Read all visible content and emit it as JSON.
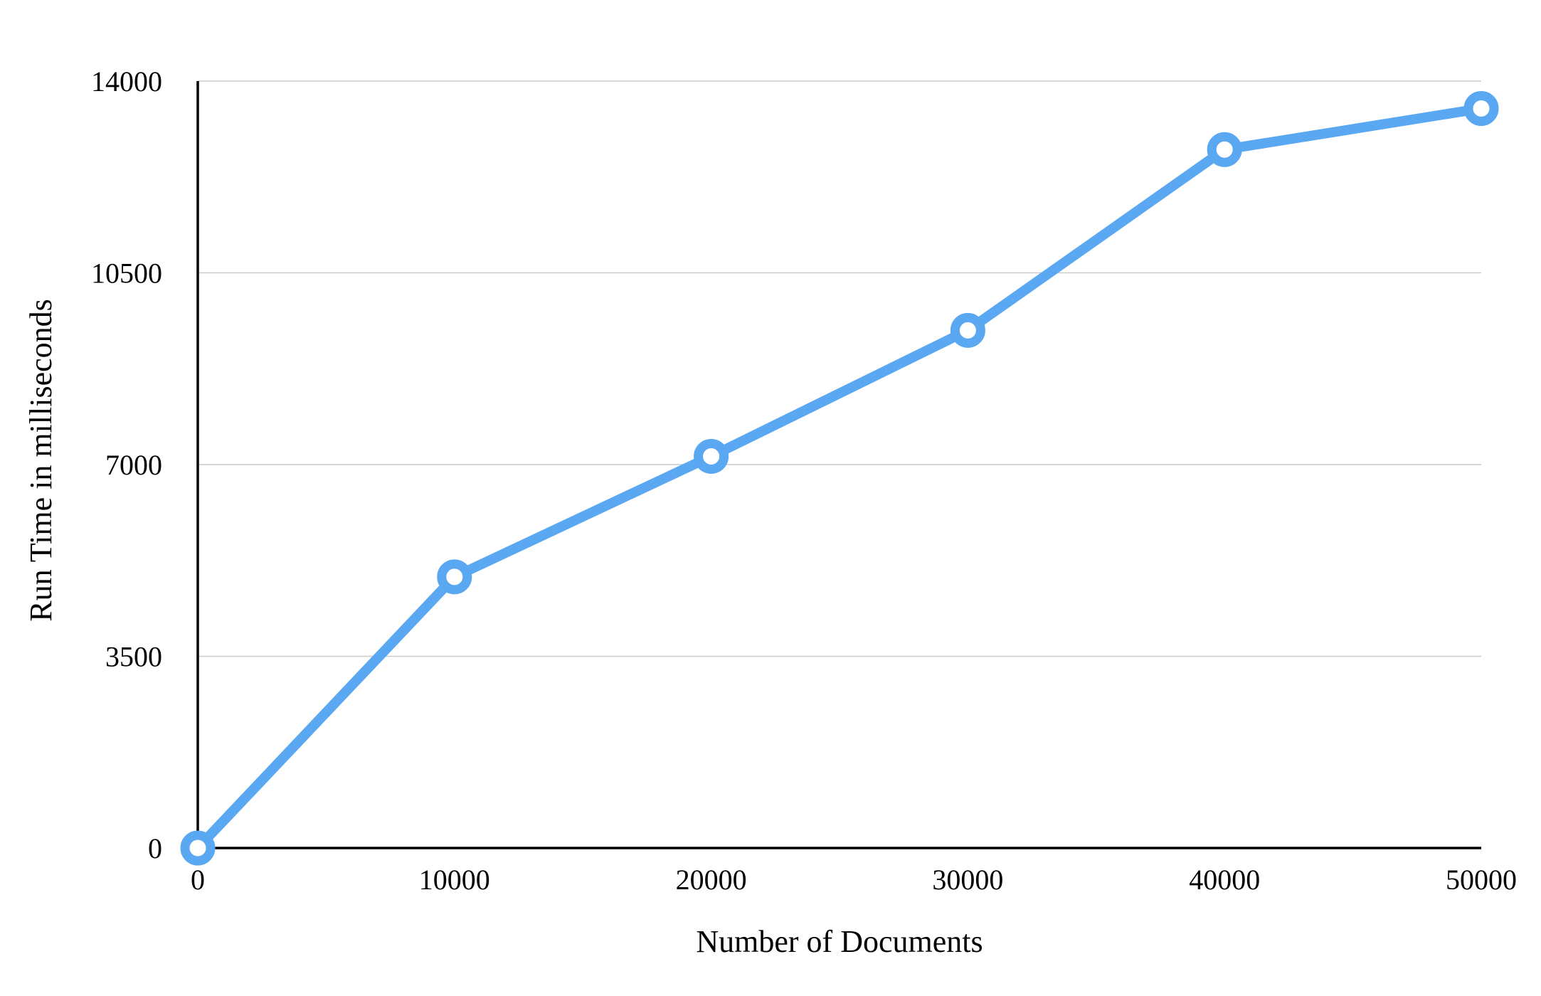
{
  "chart_data": {
    "type": "line",
    "title": "",
    "xlabel": "Number of Documents",
    "ylabel": "Run Time in milliseconds",
    "xlim": [
      0,
      50000
    ],
    "ylim": [
      0,
      14000
    ],
    "x_ticks": [
      0,
      10000,
      20000,
      30000,
      40000,
      50000
    ],
    "y_ticks": [
      0,
      3500,
      7000,
      10500,
      14000
    ],
    "x_tick_labels": [
      "0",
      "10000",
      "20000",
      "30000",
      "40000",
      "50000"
    ],
    "y_tick_labels": [
      "0",
      "3500",
      "7000",
      "10500",
      "14000"
    ],
    "grid": "horizontal",
    "legend": "none",
    "series": [
      {
        "color": "#5aa7f2",
        "x": [
          0,
          10000,
          20000,
          30000,
          40000,
          50000
        ],
        "values": [
          0,
          4950,
          7150,
          9450,
          12750,
          13500
        ]
      }
    ]
  }
}
